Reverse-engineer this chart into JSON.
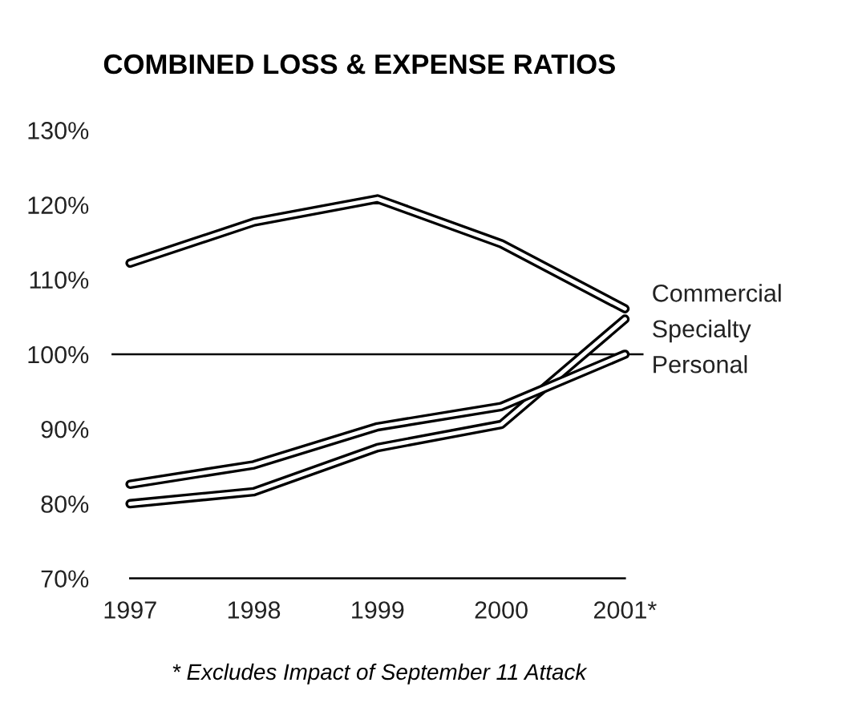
{
  "chart_data": {
    "type": "line",
    "title": "COMBINED LOSS & EXPENSE RATIOS",
    "categories": [
      "1997",
      "1998",
      "1999",
      "2000",
      "2001*"
    ],
    "series": [
      {
        "name": "Commercial",
        "color": "#000000",
        "values": [
          112.2,
          117.7,
          120.8,
          114.8,
          106.1
        ]
      },
      {
        "name": "Specialty",
        "color": "#000000",
        "values": [
          80.0,
          81.6,
          87.5,
          90.6,
          104.7
        ]
      },
      {
        "name": "Personal",
        "color": "#000000",
        "values": [
          82.6,
          85.2,
          90.3,
          93.0,
          100.0
        ]
      }
    ],
    "ylim": [
      70,
      130
    ],
    "yticks": [
      {
        "value": 70,
        "label": "70%"
      },
      {
        "value": 80,
        "label": "80%"
      },
      {
        "value": 90,
        "label": "90%"
      },
      {
        "value": 100,
        "label": "100%"
      },
      {
        "value": 110,
        "label": "110%"
      },
      {
        "value": 120,
        "label": "120%"
      },
      {
        "value": 130,
        "label": "130%"
      }
    ],
    "ref_lines": [
      {
        "axis": "y",
        "value": 100,
        "color": "#000000"
      }
    ],
    "grid": false,
    "legend": false,
    "marker": "none",
    "line_style": "solid",
    "annotations": [
      "* Excludes Impact of September 11 Attack"
    ]
  }
}
